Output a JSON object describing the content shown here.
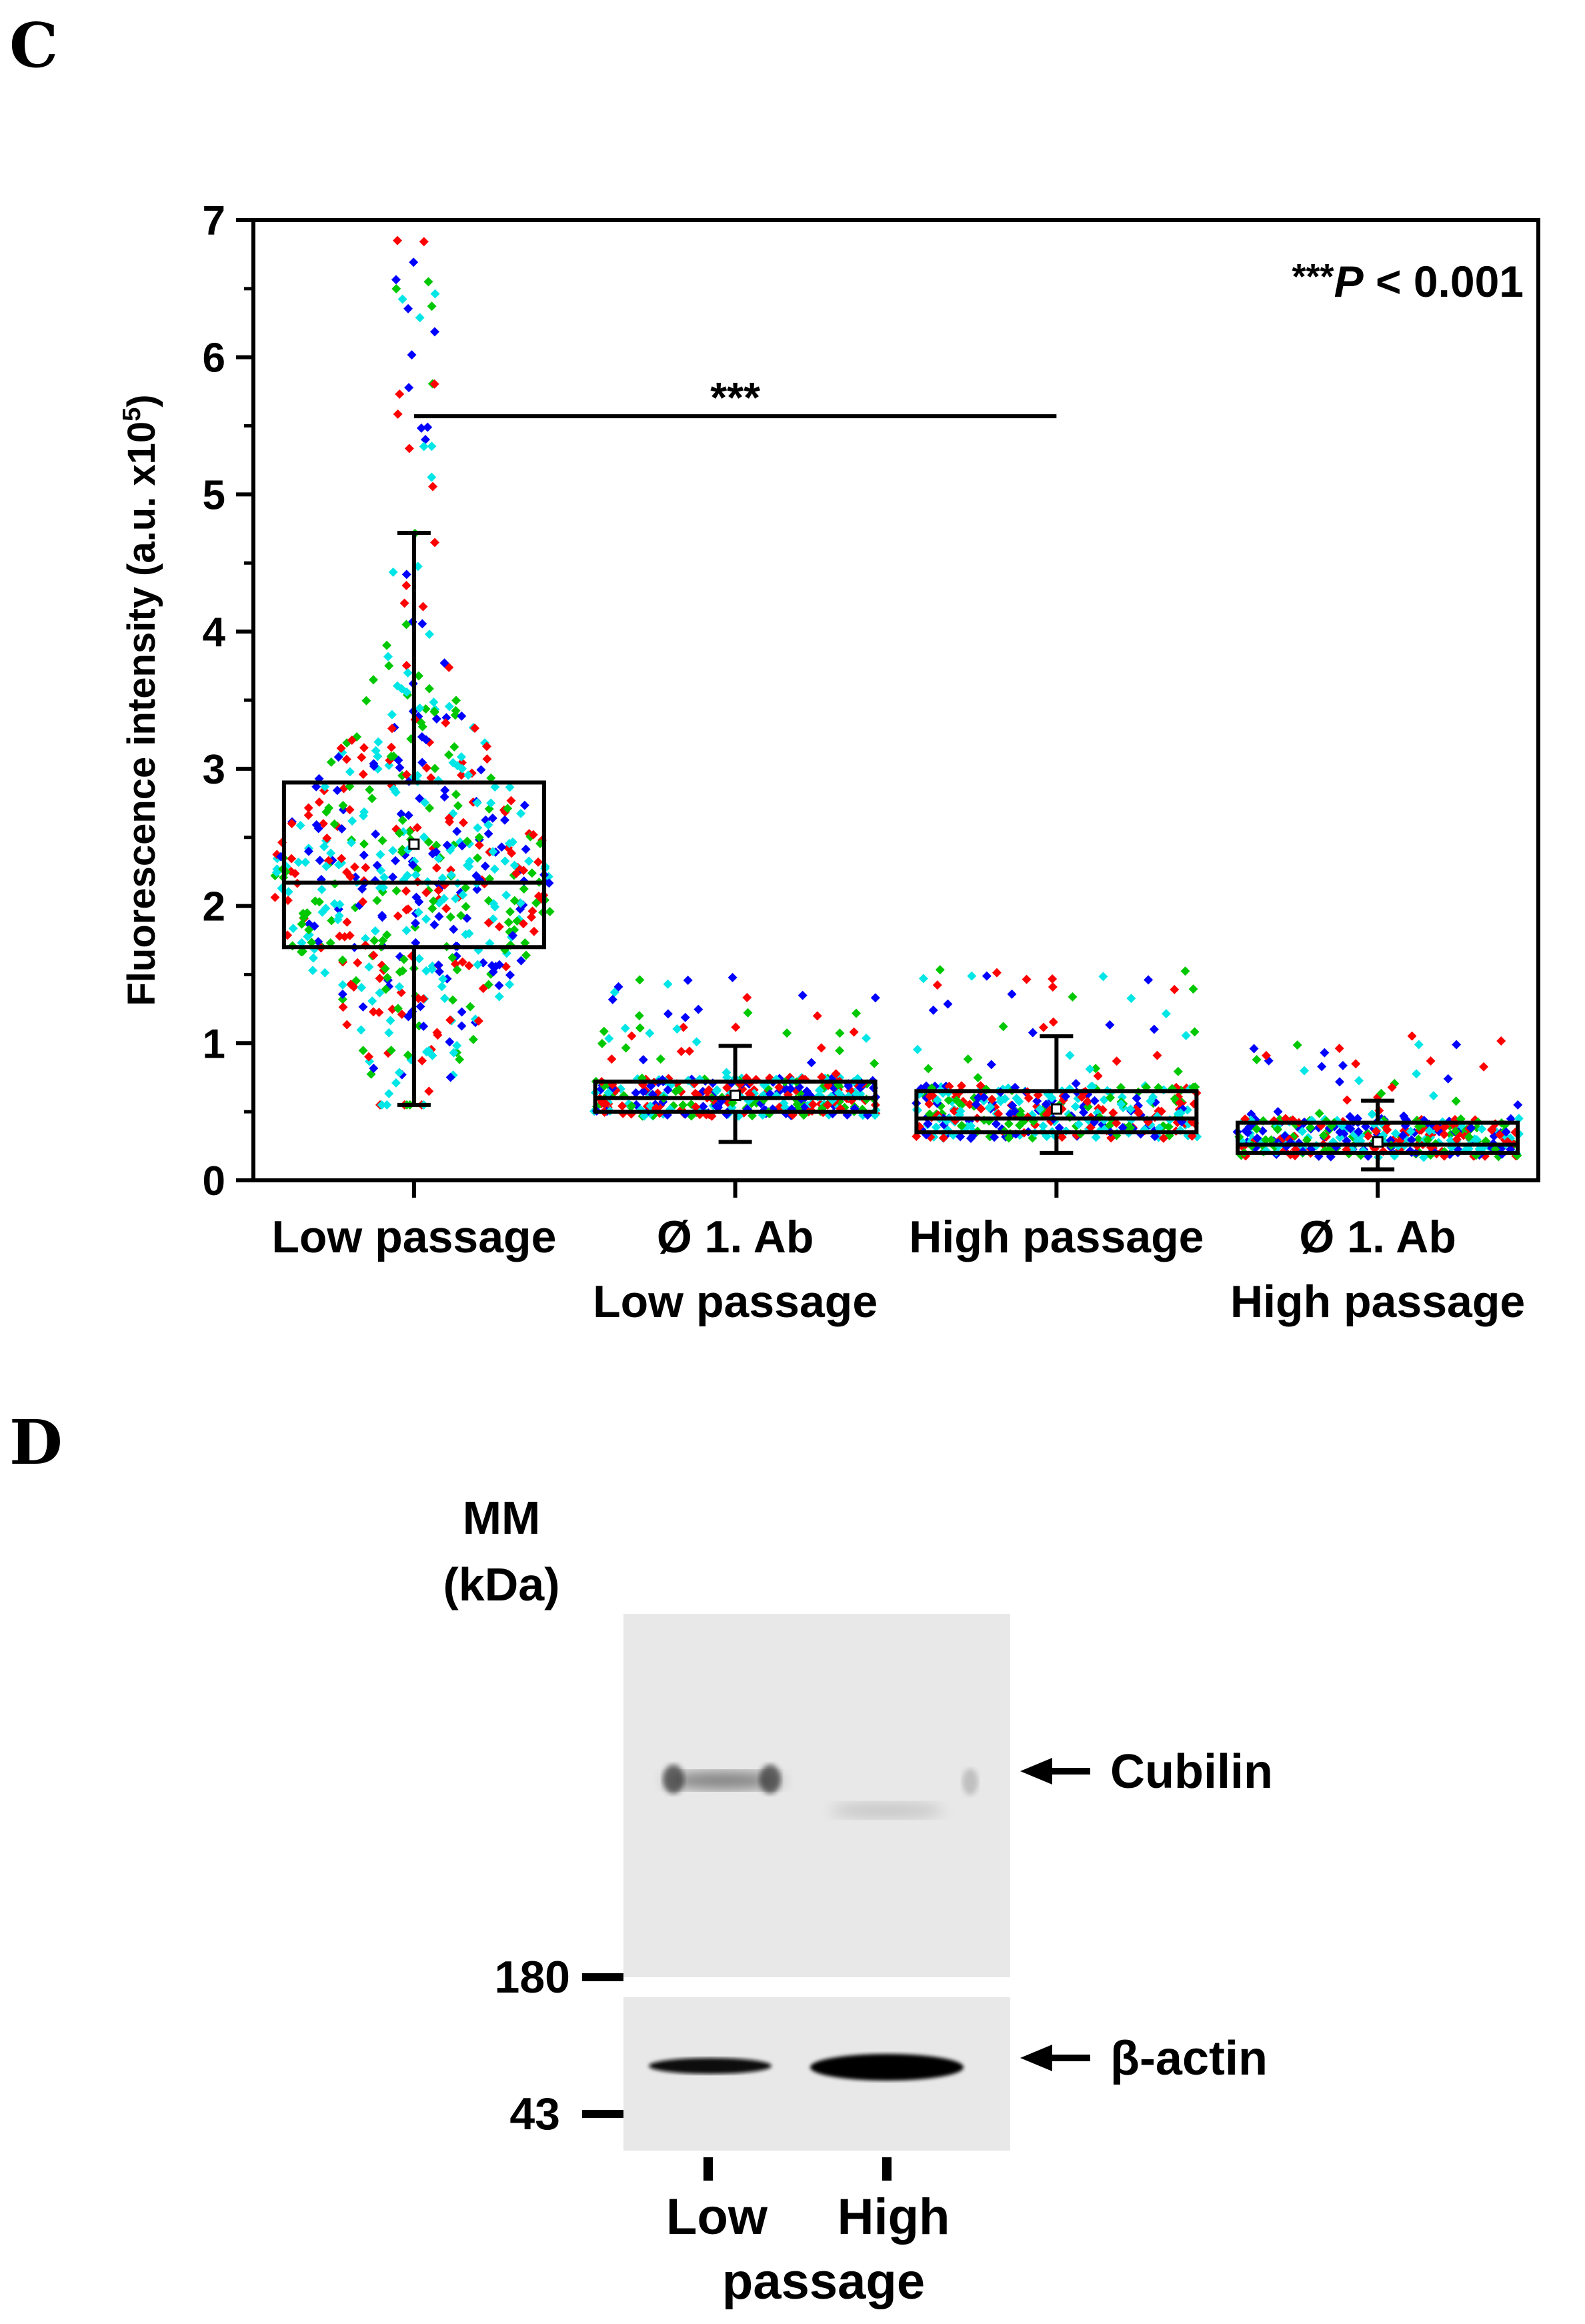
{
  "panels": {
    "c_letter": "C",
    "d_letter": "D"
  },
  "chart_data": {
    "type": "box",
    "title": "",
    "xlabel": "",
    "ylabel_main": "Fluorescence intensity (a.u. x10",
    "ylabel_sup": "5",
    "ylabel_close": ")",
    "ylim": [
      0,
      7
    ],
    "yticks": [
      "0",
      "1",
      "2",
      "3",
      "4",
      "5",
      "6",
      "7"
    ],
    "categories": [
      {
        "line1": "Low passage",
        "line2": ""
      },
      {
        "line1": "Ø 1. Ab",
        "line2": "Low passage"
      },
      {
        "line1": "High passage",
        "line2": ""
      },
      {
        "line1": "Ø 1. Ab",
        "line2": "High passage"
      }
    ],
    "boxes": [
      {
        "whisker_low": 0.55,
        "q1": 1.7,
        "median": 2.17,
        "mean": 2.45,
        "q3": 2.9,
        "whisker_high": 4.72,
        "spread": 0.8,
        "mode": "violin"
      },
      {
        "whisker_low": 0.28,
        "q1": 0.5,
        "median": 0.6,
        "mean": 0.62,
        "q3": 0.72,
        "whisker_high": 0.98,
        "spread": 0.46,
        "mode": "band"
      },
      {
        "whisker_low": 0.2,
        "q1": 0.35,
        "median": 0.45,
        "mean": 0.52,
        "q3": 0.65,
        "whisker_high": 1.05,
        "spread": 0.46,
        "mode": "band"
      },
      {
        "whisker_low": 0.08,
        "q1": 0.2,
        "median": 0.26,
        "mean": 0.28,
        "q3": 0.42,
        "whisker_high": 0.58,
        "spread": 0.46,
        "mode": "band"
      }
    ],
    "replicate_colors": [
      "#ff0000",
      "#0000ff",
      "#00c800",
      "#00e6e6"
    ],
    "significance": {
      "from": 0,
      "to": 2,
      "y": 5.57,
      "label": "***"
    },
    "annotation": {
      "stars": "***",
      "p": "P",
      "rest": " < 0.001"
    }
  },
  "blot": {
    "mm_label": "MM",
    "kda_label": "(kDa)",
    "markers": [
      "180",
      "43"
    ],
    "bands": [
      "Cubilin",
      "β-actin"
    ],
    "lanes": [
      "Low",
      "High"
    ],
    "lane_group": "passage"
  }
}
